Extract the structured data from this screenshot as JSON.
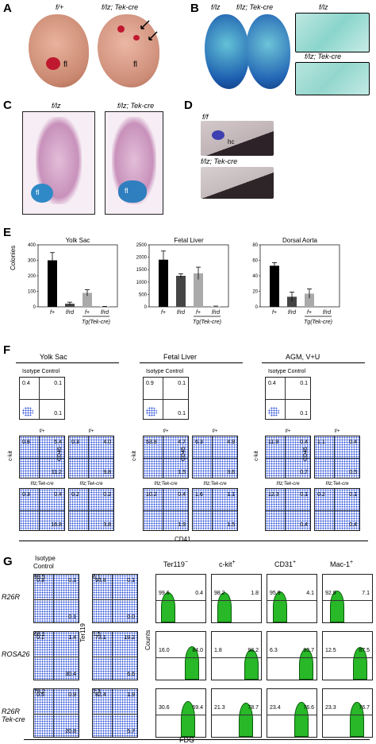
{
  "panels": {
    "A": {
      "letter": "A",
      "left_label": "f/+",
      "right_label": "f/lz; Tek-cre",
      "fl_left": "fl",
      "fl_right": "fl"
    },
    "B": {
      "letter": "B",
      "left_label": "f/lz",
      "right_label": "f/lz; Tek-cre",
      "inset_top": "f/lz",
      "inset_bottom": "f/lz; Tek-cre"
    },
    "C": {
      "letter": "C",
      "left_label": "f/lz",
      "right_label": "f/lz; Tek-cre",
      "fl_left": "fl",
      "fl_right": "fl"
    },
    "D": {
      "letter": "D",
      "top_label": "f/f",
      "hc": "hc",
      "bottom_label": "f/lz; Tek-cre"
    },
    "E": {
      "letter": "E",
      "ylabel": "Colonies",
      "tg_label": "Tg(Tek-cre)"
    },
    "F": {
      "letter": "F",
      "c_kit": "c-kit",
      "cd45": "CD45",
      "cd41": "CD41",
      "isotype": "Isotype Control",
      "f_plus": "f/+",
      "f_tek": "f/lz;Tek-cre"
    },
    "G": {
      "letter": "G",
      "isotype": "Isotype",
      "control": "Control",
      "ter119": "Ter119",
      "counts": "Counts",
      "fdg": "FDG",
      "rows": [
        "R26R",
        "ROSA26",
        "R26R",
        "Tek-cre"
      ]
    }
  },
  "chart_data": [
    {
      "type": "bar",
      "title": "Yolk Sac",
      "categories": [
        "f+",
        "f/rd",
        "f+",
        "f/rd"
      ],
      "values": [
        300,
        20,
        90,
        2
      ],
      "errors": [
        50,
        10,
        20,
        1
      ],
      "ylim": [
        0,
        400
      ],
      "yticks": [
        0,
        100,
        200,
        300,
        400
      ],
      "colors": [
        "#000000",
        "#444444",
        "#aaaaaa",
        "#cccccc"
      ]
    },
    {
      "type": "bar",
      "title": "Fetal Liver",
      "categories": [
        "f+",
        "f/rd",
        "f+",
        "f/rd"
      ],
      "values": [
        1900,
        1250,
        1350,
        20
      ],
      "errors": [
        350,
        80,
        250,
        10
      ],
      "ylim": [
        0,
        2500
      ],
      "yticks": [
        0,
        500,
        1000,
        1500,
        2000,
        2500
      ],
      "colors": [
        "#000000",
        "#444444",
        "#aaaaaa",
        "#cccccc"
      ]
    },
    {
      "type": "bar",
      "title": "Dorsal Aorta",
      "categories": [
        "f+",
        "f/rd",
        "f+",
        "f/rd"
      ],
      "values": [
        53,
        13,
        17,
        0
      ],
      "errors": [
        4,
        6,
        6,
        0
      ],
      "ylim": [
        0,
        80
      ],
      "yticks": [
        0,
        20,
        40,
        60,
        80
      ],
      "colors": [
        "#000000",
        "#444444",
        "#aaaaaa",
        "#cccccc"
      ]
    }
  ],
  "flow_F": {
    "columns": [
      "Yolk Sac",
      "Fetal Liver",
      "AGM, V+U"
    ],
    "isotype": [
      [
        "0.4",
        "0.1",
        "",
        "0.1"
      ],
      [
        "0.9",
        "0.1",
        "",
        "0.1"
      ],
      [
        "0.4",
        "0.1",
        "",
        "0.1"
      ]
    ],
    "fplus": [
      [
        "0.8",
        "5.4",
        "",
        "11.2"
      ],
      [
        "0.3",
        "4.0",
        "",
        "9.8"
      ],
      [
        "53.8",
        "4.7",
        "",
        "1.5"
      ],
      [
        "6.3",
        "4.9",
        "",
        "3.6"
      ],
      [
        "11.9",
        "0.4",
        "",
        "0.7"
      ],
      [
        "1.1",
        "0.4",
        "",
        "0.5"
      ]
    ],
    "ftek": [
      [
        "0.3",
        "0.4",
        "",
        "16.8"
      ],
      [
        "0.2",
        "0.2",
        "",
        "3.8"
      ],
      [
        "10.2",
        "0.4",
        "",
        "1.9"
      ],
      [
        "1.6",
        "1.1",
        "",
        "1.5"
      ],
      [
        "12.3",
        "0.1",
        "",
        "0.4"
      ],
      [
        "0.2",
        "0.1",
        "",
        "0.4"
      ]
    ]
  },
  "flow_G": {
    "headers": [
      "Ter119",
      "c-kit",
      "CD31",
      "Mac-1"
    ],
    "sups": [
      "−",
      "+",
      "+",
      "+"
    ],
    "iso": [
      [
        "0.3",
        "0.1",
        "99.5",
        "0.1"
      ],
      [
        "0.1",
        "1.4",
        "68.1",
        "30.4"
      ],
      [
        "0.5",
        "0.9",
        "78.2",
        "20.8"
      ]
    ],
    "ter": [
      [
        "93.8",
        "0.1",
        "6.1",
        "0.0"
      ],
      [
        "73.1",
        "19.2",
        "1.5",
        "6.6"
      ],
      [
        "82.4",
        "1.9",
        "2.3",
        "5.7"
      ]
    ],
    "hist": [
      [
        [
          "99.6",
          "0.4"
        ],
        [
          "98.2",
          "1.8"
        ],
        [
          "95.9",
          "4.1"
        ],
        [
          "92.9",
          "7.1"
        ]
      ],
      [
        [
          "16.0",
          "84.0"
        ],
        [
          "1.8",
          "98.2"
        ],
        [
          "6.3",
          "93.7"
        ],
        [
          "12.5",
          "87.5"
        ]
      ],
      [
        [
          "30.6",
          "69.4"
        ],
        [
          "21.3",
          "78.7"
        ],
        [
          "23.4",
          "76.6"
        ],
        [
          "23.3",
          "76.7"
        ]
      ]
    ]
  }
}
